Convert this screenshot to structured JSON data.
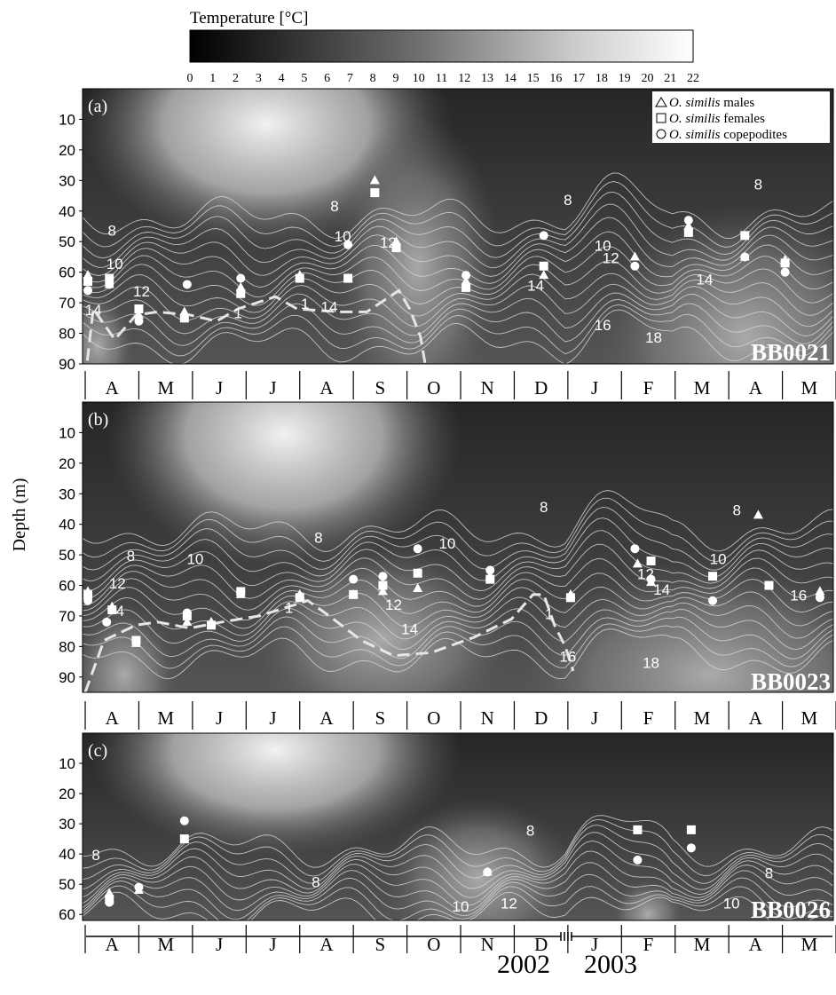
{
  "colorbar": {
    "title": "Temperature [°C]",
    "ticks": [
      "0",
      "1",
      "2",
      "3",
      "4",
      "5",
      "6",
      "7",
      "8",
      "9",
      "10",
      "11",
      "12",
      "13",
      "14",
      "15",
      "16",
      "17",
      "18",
      "19",
      "20",
      "21",
      "22"
    ],
    "range": [
      0,
      22
    ],
    "colors": {
      "low": "#000000",
      "mid": "#6e6e6e",
      "high": "#ffffff"
    }
  },
  "y_axis_label": "Depth (m)",
  "legend": [
    {
      "marker": "triangle",
      "species": "O. similis",
      "label": "males"
    },
    {
      "marker": "square",
      "species": "O. similis",
      "label": "females"
    },
    {
      "marker": "circle",
      "species": "O. similis",
      "label": "copepodites"
    }
  ],
  "month_labels": [
    "A",
    "M",
    "J",
    "J",
    "A",
    "S",
    "O",
    "N",
    "D",
    "J",
    "F",
    "M",
    "A",
    "M"
  ],
  "years": [
    "2002",
    "2003"
  ],
  "chart_data": [
    {
      "type": "heatmap",
      "panel": "(a)",
      "station": "BB0021",
      "ylabel": "Depth (m)",
      "ylim": [
        90,
        0
      ],
      "yticks": [
        10,
        20,
        30,
        40,
        50,
        60,
        70,
        80,
        90
      ],
      "xlim": [
        0,
        14
      ],
      "isotherm_labels": [
        {
          "label": "8",
          "x": 0.55,
          "depth": 48
        },
        {
          "label": "10",
          "x": 0.6,
          "depth": 59
        },
        {
          "label": "12",
          "x": 1.1,
          "depth": 68
        },
        {
          "label": "14",
          "x": 0.2,
          "depth": 74
        },
        {
          "label": "1",
          "x": 2.9,
          "depth": 75
        },
        {
          "label": "1",
          "x": 4.15,
          "depth": 72
        },
        {
          "label": "14",
          "x": 4.6,
          "depth": 73
        },
        {
          "label": "8",
          "x": 4.7,
          "depth": 40
        },
        {
          "label": "10",
          "x": 4.85,
          "depth": 50
        },
        {
          "label": "12",
          "x": 5.7,
          "depth": 52
        },
        {
          "label": "14",
          "x": 8.45,
          "depth": 66
        },
        {
          "label": "8",
          "x": 9.05,
          "depth": 38
        },
        {
          "label": "10",
          "x": 9.7,
          "depth": 53
        },
        {
          "label": "12",
          "x": 9.85,
          "depth": 57
        },
        {
          "label": "14",
          "x": 11.6,
          "depth": 64
        },
        {
          "label": "16",
          "x": 9.7,
          "depth": 79
        },
        {
          "label": "18",
          "x": 10.65,
          "depth": 83
        },
        {
          "label": "8",
          "x": 12.6,
          "depth": 33
        }
      ],
      "mixed_layer_depth": [
        [
          0.05,
          95
        ],
        [
          0.2,
          72
        ],
        [
          0.6,
          82
        ],
        [
          1.0,
          74
        ],
        [
          1.4,
          73
        ],
        [
          2.0,
          74
        ],
        [
          2.5,
          76
        ],
        [
          2.9,
          72
        ],
        [
          3.6,
          68
        ],
        [
          4.0,
          72
        ],
        [
          4.8,
          73
        ],
        [
          5.3,
          73
        ],
        [
          5.9,
          66
        ],
        [
          6.1,
          72
        ],
        [
          6.3,
          81
        ],
        [
          6.4,
          91
        ]
      ],
      "observations": [
        {
          "stage": "males",
          "x": 0.1,
          "depth": 61
        },
        {
          "stage": "males",
          "x": 0.5,
          "depth": 64
        },
        {
          "stage": "males",
          "x": 1.05,
          "depth": 74
        },
        {
          "stage": "males",
          "x": 1.9,
          "depth": 73
        },
        {
          "stage": "males",
          "x": 2.95,
          "depth": 65
        },
        {
          "stage": "males",
          "x": 4.05,
          "depth": 61
        },
        {
          "stage": "males",
          "x": 4.95,
          "depth": 62
        },
        {
          "stage": "males",
          "x": 5.45,
          "depth": 30
        },
        {
          "stage": "males",
          "x": 5.85,
          "depth": 50
        },
        {
          "stage": "males",
          "x": 7.15,
          "depth": 63
        },
        {
          "stage": "males",
          "x": 8.6,
          "depth": 61
        },
        {
          "stage": "males",
          "x": 10.3,
          "depth": 55
        },
        {
          "stage": "males",
          "x": 11.3,
          "depth": 45
        },
        {
          "stage": "males",
          "x": 12.35,
          "depth": 55
        },
        {
          "stage": "males",
          "x": 13.1,
          "depth": 56
        },
        {
          "stage": "females",
          "x": 0.1,
          "depth": 63
        },
        {
          "stage": "females",
          "x": 0.5,
          "depth": 62
        },
        {
          "stage": "females",
          "x": 1.05,
          "depth": 72
        },
        {
          "stage": "females",
          "x": 1.9,
          "depth": 75
        },
        {
          "stage": "females",
          "x": 2.95,
          "depth": 67
        },
        {
          "stage": "females",
          "x": 4.05,
          "depth": 62
        },
        {
          "stage": "females",
          "x": 4.95,
          "depth": 62
        },
        {
          "stage": "females",
          "x": 5.45,
          "depth": 34
        },
        {
          "stage": "females",
          "x": 5.85,
          "depth": 52
        },
        {
          "stage": "females",
          "x": 7.15,
          "depth": 65
        },
        {
          "stage": "females",
          "x": 8.6,
          "depth": 58
        },
        {
          "stage": "females",
          "x": 11.3,
          "depth": 47
        },
        {
          "stage": "females",
          "x": 12.35,
          "depth": 48
        },
        {
          "stage": "females",
          "x": 13.1,
          "depth": 57
        },
        {
          "stage": "copepodites",
          "x": 0.1,
          "depth": 66
        },
        {
          "stage": "copepodites",
          "x": 0.5,
          "depth": 64
        },
        {
          "stage": "copepodites",
          "x": 1.05,
          "depth": 76
        },
        {
          "stage": "copepodites",
          "x": 1.95,
          "depth": 64
        },
        {
          "stage": "copepodites",
          "x": 2.95,
          "depth": 62
        },
        {
          "stage": "copepodites",
          "x": 4.05,
          "depth": 62
        },
        {
          "stage": "copepodites",
          "x": 4.95,
          "depth": 51
        },
        {
          "stage": "copepodites",
          "x": 7.15,
          "depth": 61
        },
        {
          "stage": "copepodites",
          "x": 8.6,
          "depth": 48
        },
        {
          "stage": "copepodites",
          "x": 10.3,
          "depth": 58
        },
        {
          "stage": "copepodites",
          "x": 11.3,
          "depth": 43
        },
        {
          "stage": "copepodites",
          "x": 12.35,
          "depth": 55
        },
        {
          "stage": "copepodites",
          "x": 13.1,
          "depth": 60
        }
      ]
    },
    {
      "type": "heatmap",
      "panel": "(b)",
      "station": "BB0023",
      "ylabel": "Depth (m)",
      "ylim": [
        95,
        0
      ],
      "yticks": [
        10,
        20,
        30,
        40,
        50,
        60,
        70,
        80,
        90
      ],
      "xlim": [
        0,
        14
      ],
      "isotherm_labels": [
        {
          "label": "8",
          "x": 0.9,
          "depth": 52
        },
        {
          "label": "12",
          "x": 0.65,
          "depth": 61
        },
        {
          "label": "4",
          "x": 0.7,
          "depth": 70
        },
        {
          "label": "10",
          "x": 2.1,
          "depth": 53
        },
        {
          "label": "1",
          "x": 3.85,
          "depth": 69
        },
        {
          "label": "8",
          "x": 4.4,
          "depth": 46
        },
        {
          "label": "10",
          "x": 6.8,
          "depth": 48
        },
        {
          "label": "12",
          "x": 5.8,
          "depth": 68
        },
        {
          "label": "14",
          "x": 6.1,
          "depth": 76
        },
        {
          "label": "8",
          "x": 8.6,
          "depth": 36
        },
        {
          "label": "16",
          "x": 9.05,
          "depth": 85
        },
        {
          "label": "1",
          "x": 8.7,
          "depth": 71
        },
        {
          "label": "12",
          "x": 10.5,
          "depth": 58
        },
        {
          "label": "14",
          "x": 10.8,
          "depth": 63
        },
        {
          "label": "10",
          "x": 11.85,
          "depth": 53
        },
        {
          "label": "18",
          "x": 10.6,
          "depth": 87
        },
        {
          "label": "8",
          "x": 12.2,
          "depth": 37
        },
        {
          "label": "16",
          "x": 13.35,
          "depth": 65
        }
      ],
      "mixed_layer_depth": [
        [
          0.05,
          95
        ],
        [
          0.4,
          78
        ],
        [
          1.0,
          73
        ],
        [
          1.4,
          72
        ],
        [
          2.0,
          74
        ],
        [
          2.6,
          72
        ],
        [
          3.3,
          70
        ],
        [
          4.2,
          65
        ],
        [
          4.6,
          70
        ],
        [
          5.2,
          78
        ],
        [
          5.8,
          83
        ],
        [
          6.5,
          82
        ],
        [
          7.3,
          77
        ],
        [
          8.0,
          71
        ],
        [
          8.4,
          63
        ],
        [
          8.6,
          63
        ],
        [
          8.8,
          73
        ],
        [
          9.0,
          80
        ],
        [
          9.15,
          88
        ]
      ],
      "observations": [
        {
          "stage": "males",
          "x": 0.1,
          "depth": 62
        },
        {
          "stage": "males",
          "x": 0.55,
          "depth": 67
        },
        {
          "stage": "males",
          "x": 1.0,
          "depth": 79
        },
        {
          "stage": "males",
          "x": 1.95,
          "depth": 72
        },
        {
          "stage": "males",
          "x": 2.4,
          "depth": 72
        },
        {
          "stage": "males",
          "x": 2.95,
          "depth": 63
        },
        {
          "stage": "males",
          "x": 4.05,
          "depth": 63
        },
        {
          "stage": "males",
          "x": 5.05,
          "depth": 63
        },
        {
          "stage": "males",
          "x": 5.6,
          "depth": 62
        },
        {
          "stage": "males",
          "x": 6.25,
          "depth": 61
        },
        {
          "stage": "males",
          "x": 7.6,
          "depth": 57
        },
        {
          "stage": "males",
          "x": 9.1,
          "depth": 63
        },
        {
          "stage": "males",
          "x": 10.35,
          "depth": 53
        },
        {
          "stage": "males",
          "x": 10.6,
          "depth": 59
        },
        {
          "stage": "males",
          "x": 12.6,
          "depth": 37
        },
        {
          "stage": "males",
          "x": 13.75,
          "depth": 62
        },
        {
          "stage": "females",
          "x": 0.1,
          "depth": 63
        },
        {
          "stage": "females",
          "x": 0.55,
          "depth": 68
        },
        {
          "stage": "females",
          "x": 1.0,
          "depth": 78
        },
        {
          "stage": "females",
          "x": 1.95,
          "depth": 70
        },
        {
          "stage": "females",
          "x": 2.4,
          "depth": 73
        },
        {
          "stage": "females",
          "x": 2.95,
          "depth": 62
        },
        {
          "stage": "females",
          "x": 4.05,
          "depth": 64
        },
        {
          "stage": "females",
          "x": 5.05,
          "depth": 63
        },
        {
          "stage": "females",
          "x": 5.6,
          "depth": 60
        },
        {
          "stage": "females",
          "x": 6.25,
          "depth": 56
        },
        {
          "stage": "females",
          "x": 7.6,
          "depth": 58
        },
        {
          "stage": "females",
          "x": 9.1,
          "depth": 64
        },
        {
          "stage": "females",
          "x": 10.6,
          "depth": 52
        },
        {
          "stage": "females",
          "x": 11.75,
          "depth": 57
        },
        {
          "stage": "females",
          "x": 12.8,
          "depth": 60
        },
        {
          "stage": "copepodites",
          "x": 0.1,
          "depth": 65
        },
        {
          "stage": "copepodites",
          "x": 0.45,
          "depth": 72
        },
        {
          "stage": "copepodites",
          "x": 1.95,
          "depth": 69
        },
        {
          "stage": "copepodites",
          "x": 2.95,
          "depth": 62
        },
        {
          "stage": "copepodites",
          "x": 4.05,
          "depth": 64
        },
        {
          "stage": "copepodites",
          "x": 5.05,
          "depth": 58
        },
        {
          "stage": "copepodites",
          "x": 5.6,
          "depth": 57
        },
        {
          "stage": "copepodites",
          "x": 6.25,
          "depth": 48
        },
        {
          "stage": "copepodites",
          "x": 7.6,
          "depth": 55
        },
        {
          "stage": "copepodites",
          "x": 10.3,
          "depth": 48
        },
        {
          "stage": "copepodites",
          "x": 10.6,
          "depth": 58
        },
        {
          "stage": "copepodites",
          "x": 11.75,
          "depth": 65
        },
        {
          "stage": "copepodites",
          "x": 13.75,
          "depth": 64
        }
      ]
    },
    {
      "type": "heatmap",
      "panel": "(c)",
      "station": "BB0026",
      "ylabel": "Depth (m)",
      "ylim": [
        62,
        0
      ],
      "yticks": [
        10,
        20,
        30,
        40,
        50,
        60
      ],
      "xlim": [
        0,
        14
      ],
      "isotherm_labels": [
        {
          "label": "8",
          "x": 0.25,
          "depth": 42
        },
        {
          "label": "8",
          "x": 4.35,
          "depth": 51
        },
        {
          "label": "8",
          "x": 8.35,
          "depth": 34
        },
        {
          "label": "10",
          "x": 7.05,
          "depth": 59
        },
        {
          "label": "12",
          "x": 7.95,
          "depth": 58
        },
        {
          "label": "10",
          "x": 12.1,
          "depth": 58
        },
        {
          "label": "8",
          "x": 12.8,
          "depth": 48
        }
      ],
      "mixed_layer_depth": [],
      "observations": [
        {
          "stage": "males",
          "x": 0.5,
          "depth": 53
        },
        {
          "stage": "males",
          "x": 1.05,
          "depth": 52
        },
        {
          "stage": "males",
          "x": 7.55,
          "depth": 46
        },
        {
          "stage": "females",
          "x": 0.5,
          "depth": 55
        },
        {
          "stage": "females",
          "x": 1.9,
          "depth": 35
        },
        {
          "stage": "females",
          "x": 10.35,
          "depth": 32
        },
        {
          "stage": "females",
          "x": 11.35,
          "depth": 32
        },
        {
          "stage": "copepodites",
          "x": 0.5,
          "depth": 56
        },
        {
          "stage": "copepodites",
          "x": 1.05,
          "depth": 51
        },
        {
          "stage": "copepodites",
          "x": 1.9,
          "depth": 29
        },
        {
          "stage": "copepodites",
          "x": 7.55,
          "depth": 46
        },
        {
          "stage": "copepodites",
          "x": 10.35,
          "depth": 42
        },
        {
          "stage": "copepodites",
          "x": 11.35,
          "depth": 38
        }
      ]
    }
  ]
}
